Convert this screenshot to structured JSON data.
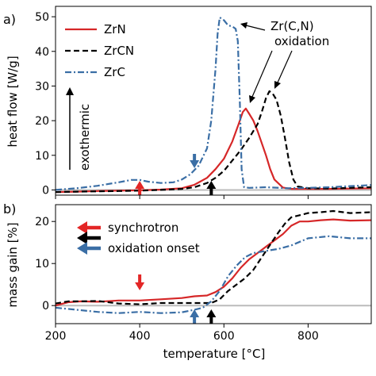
{
  "chart_data": [
    {
      "panel_label": "a)",
      "type": "line",
      "xlabel": "",
      "ylabel": "heat flow [W/g]",
      "xlim": [
        200,
        950
      ],
      "ylim": [
        -1.5,
        53
      ],
      "yticks": [
        0,
        10,
        20,
        30,
        40,
        50
      ],
      "grid": false,
      "legend_position": "top-left",
      "exothermic_label": "exothermic",
      "annotation": {
        "line1": "Zr(C,N)",
        "line2": "oxidation"
      },
      "baseline_y": 0,
      "series": [
        {
          "name": "ZrN",
          "color": "#d62728",
          "style": "solid",
          "x": [
            200,
            250,
            300,
            350,
            400,
            450,
            500,
            530,
            560,
            580,
            600,
            620,
            635,
            645,
            652,
            660,
            670,
            680,
            700,
            710,
            720,
            740,
            760,
            800,
            850,
            900,
            950
          ],
          "y": [
            -0.6,
            -0.5,
            -0.3,
            -0.2,
            -0.1,
            0.1,
            0.5,
            1.5,
            3.5,
            6,
            9,
            14,
            19,
            22.5,
            23.5,
            22,
            20,
            17,
            10,
            6,
            3,
            0.7,
            0.3,
            0.3,
            0.3,
            0.4,
            0.5
          ]
        },
        {
          "name": "ZrCN",
          "color": "#000000",
          "style": "dashed",
          "x": [
            200,
            250,
            300,
            350,
            400,
            450,
            500,
            530,
            560,
            580,
            600,
            620,
            640,
            660,
            680,
            690,
            700,
            708,
            715,
            725,
            735,
            745,
            755,
            765,
            775,
            800,
            850,
            900,
            950
          ],
          "y": [
            -0.6,
            -0.5,
            -0.4,
            -0.3,
            -0.2,
            0,
            0.3,
            0.8,
            2,
            3.5,
            5.5,
            8.5,
            11.5,
            15,
            19,
            22.5,
            26.5,
            28.5,
            28,
            26,
            21.5,
            15,
            8,
            3,
            1,
            0.5,
            0.4,
            0.6,
            0.8
          ]
        },
        {
          "name": "ZrC",
          "color": "#3a6ea5",
          "style": "dashdot",
          "x": [
            200,
            250,
            300,
            350,
            380,
            400,
            420,
            450,
            480,
            500,
            520,
            540,
            560,
            570,
            580,
            585,
            590,
            600,
            610,
            620,
            628,
            633,
            638,
            642,
            648,
            660,
            700,
            750,
            800,
            850,
            900,
            950
          ],
          "y": [
            0,
            0.5,
            1.2,
            2.2,
            2.9,
            2.9,
            2.4,
            2.0,
            2.2,
            3,
            4.5,
            7,
            12,
            20,
            35,
            45,
            49.8,
            49,
            47.5,
            47.2,
            46.5,
            43,
            25,
            6,
            0.8,
            0.6,
            0.8,
            0.5,
            0.6,
            0.8,
            1.1,
            1.4
          ]
        }
      ],
      "onset_markers": [
        {
          "series": "ZrN",
          "x": 400,
          "color": "#e32626"
        },
        {
          "series": "ZrCN",
          "x": 570,
          "color": "#000000"
        },
        {
          "series": "ZrC",
          "x": 530,
          "color": "#3a6ea5"
        }
      ]
    },
    {
      "panel_label": "b)",
      "type": "line",
      "xlabel": "temperature [°C]",
      "ylabel": "mass gain [%]",
      "xlim": [
        200,
        950
      ],
      "ylim": [
        -4.3,
        24
      ],
      "xticks": [
        200,
        400,
        600,
        800
      ],
      "yticks": [
        0,
        10,
        20
      ],
      "grid": false,
      "legend_position": "top-left",
      "baseline_y": 0,
      "legend_arrows": {
        "colors": [
          "#e32626",
          "#000000",
          "#3a6ea5"
        ],
        "label_line1": "synchrotron",
        "label_line2": "oxidation onset"
      },
      "series": [
        {
          "name": "ZrN",
          "color": "#d62728",
          "style": "solid",
          "x": [
            200,
            230,
            260,
            300,
            350,
            400,
            450,
            500,
            530,
            560,
            580,
            600,
            620,
            640,
            660,
            680,
            700,
            720,
            740,
            760,
            780,
            800,
            830,
            860,
            900,
            950
          ],
          "y": [
            0,
            0.8,
            1,
            0.9,
            1.2,
            1.2,
            1.5,
            1.8,
            2.2,
            2.4,
            3.2,
            4.5,
            6.5,
            9,
            11,
            12.5,
            14,
            15.5,
            17,
            19,
            20,
            20,
            20.3,
            20.5,
            20.2,
            20.3
          ]
        },
        {
          "name": "ZrCN",
          "color": "#000000",
          "style": "dashed",
          "x": [
            200,
            230,
            260,
            300,
            350,
            400,
            450,
            500,
            540,
            570,
            590,
            610,
            630,
            650,
            670,
            690,
            710,
            730,
            745,
            760,
            780,
            800,
            830,
            860,
            900,
            950
          ],
          "y": [
            0.5,
            1,
            1,
            1.1,
            0.5,
            0.3,
            0.6,
            0.6,
            0.6,
            0.6,
            1.5,
            3.5,
            5,
            6.5,
            8.5,
            11.5,
            14.5,
            17.5,
            19.5,
            21,
            21.5,
            22,
            22.2,
            22.5,
            22,
            22.2
          ]
        },
        {
          "name": "ZrC",
          "color": "#3a6ea5",
          "style": "dashdot",
          "x": [
            200,
            250,
            300,
            350,
            400,
            450,
            500,
            530,
            550,
            570,
            590,
            610,
            630,
            650,
            670,
            700,
            730,
            760,
            800,
            850,
            900,
            950
          ],
          "y": [
            -0.5,
            -1,
            -1.5,
            -1.8,
            -1.5,
            -1.8,
            -1.6,
            -1,
            -0.5,
            1,
            3.5,
            7,
            9.5,
            11.5,
            12.5,
            13,
            13.5,
            14.3,
            16,
            16.5,
            16,
            16
          ]
        }
      ],
      "onset_markers": [
        {
          "series": "ZrN",
          "x": 400,
          "color": "#e32626"
        },
        {
          "series": "ZrCN",
          "x": 570,
          "color": "#000000"
        },
        {
          "series": "ZrC",
          "x": 530,
          "color": "#3a6ea5"
        }
      ]
    }
  ]
}
